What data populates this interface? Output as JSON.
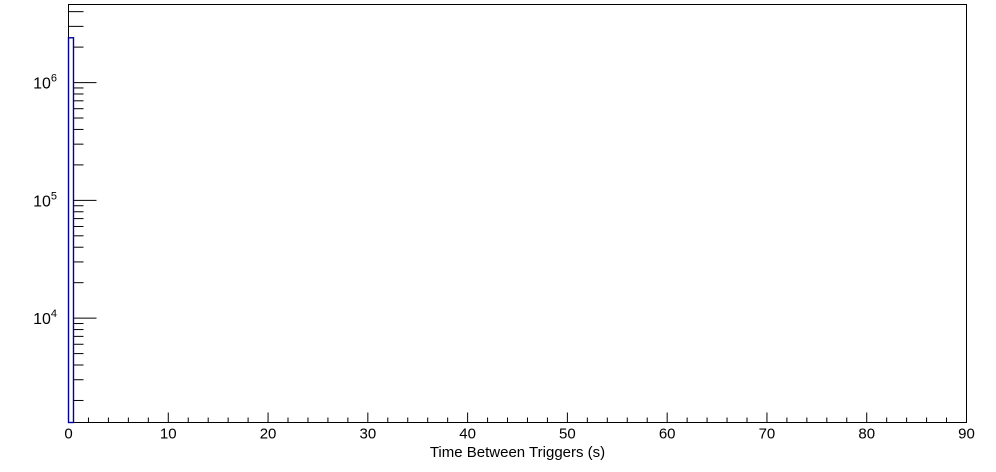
{
  "chart_data": {
    "type": "bar",
    "title": "",
    "xlabel": "Time Between Triggers (s)",
    "ylabel": "",
    "grid": false,
    "legend": false,
    "x_axis": {
      "min": 0,
      "max": 90,
      "major_tick_step": 10,
      "minor_tick_step": 2,
      "tick_labels": [
        {
          "value": 0,
          "label": "0"
        },
        {
          "value": 10,
          "label": "10"
        },
        {
          "value": 20,
          "label": "20"
        },
        {
          "value": 30,
          "label": "30"
        },
        {
          "value": 40,
          "label": "40"
        },
        {
          "value": 50,
          "label": "50"
        },
        {
          "value": 60,
          "label": "60"
        },
        {
          "value": 70,
          "label": "70"
        },
        {
          "value": 80,
          "label": "80"
        },
        {
          "value": 90,
          "label": "90"
        }
      ]
    },
    "y_axis": {
      "scale": "log",
      "min": 1300,
      "max": 4600000,
      "decade_labels": [
        {
          "value": 1000000,
          "base": "10",
          "exponent": "6"
        },
        {
          "value": 100000,
          "base": "10",
          "exponent": "5"
        },
        {
          "value": 10000,
          "base": "10",
          "exponent": "4"
        }
      ]
    },
    "series": [
      {
        "name": "time-between-triggers-histogram",
        "bins": [
          {
            "x_start": 0,
            "x_end": 0.5,
            "count": 2400000
          }
        ]
      }
    ],
    "colors": {
      "histogram_line": "#000099",
      "axis": "#000000",
      "text": "#000000",
      "background": "#ffffff"
    }
  }
}
